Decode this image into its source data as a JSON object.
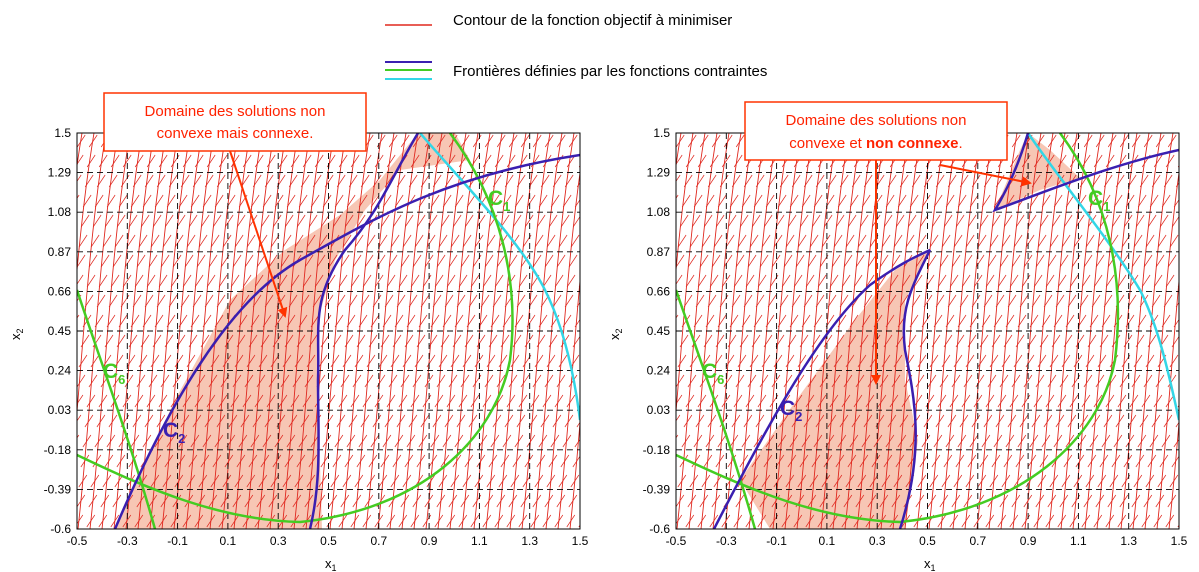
{
  "legend": {
    "contour_label": "Contour de la fonction objectif à minimiser",
    "boundary_label": "Frontières définies par les fonctions contraintes",
    "colors": {
      "contour": "#e0281f",
      "boundary1": "#3a1fb0",
      "boundary2": "#44cc22",
      "boundary3": "#33d6e6"
    }
  },
  "axes": {
    "xlabel": "x",
    "xlabel_sub": "1",
    "ylabel": "x",
    "ylabel_sub": "2",
    "xlim": [
      -0.5,
      1.5
    ],
    "ylim": [
      -0.6,
      1.5
    ],
    "xticks": [
      "-0.5",
      "-0.3",
      "-0.1",
      "0.1",
      "0.3",
      "0.5",
      "0.7",
      "0.9",
      "1.1",
      "1.3",
      "1.5"
    ],
    "yticks": [
      "1.5",
      "1.29",
      "1.08",
      "0.87",
      "0.66",
      "0.45",
      "0.24",
      "0.03",
      "-0.18",
      "-0.39",
      "-0.6"
    ]
  },
  "left_panel": {
    "note_line1": "Domaine des solutions non",
    "note_line2": "convexe mais connexe.",
    "labels": {
      "c2": "C",
      "c2_sub": "2",
      "c6": "C",
      "c6_sub": "6",
      "c1": "C",
      "c1_sub": "1"
    }
  },
  "right_panel": {
    "note_line1": "Domaine des solutions non",
    "note_line2_a": "convexe et ",
    "note_line2_b": "non connexe",
    "note_line2_c": ".",
    "labels": {
      "c2": "C",
      "c2_sub": "2",
      "c6": "C",
      "c6_sub": "6",
      "c1": "C",
      "c1_sub": "1"
    }
  }
}
